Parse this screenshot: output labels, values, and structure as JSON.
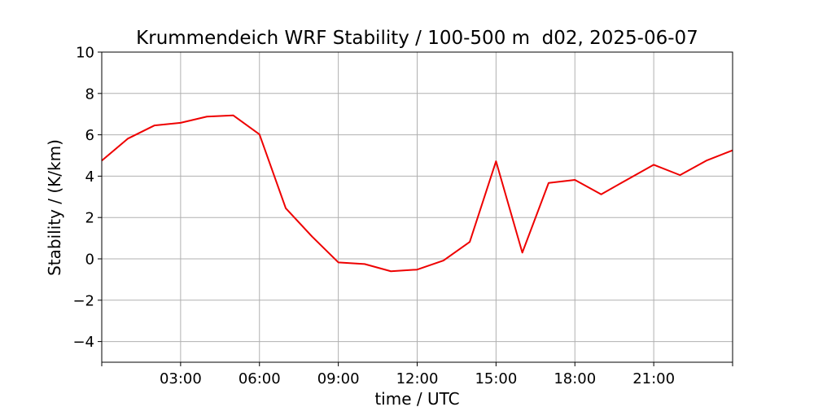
{
  "chart_data": {
    "type": "line",
    "title": "Krummendeich WRF Stability / 100-500 m  d02, 2025-06-07",
    "xlabel": "time / UTC",
    "ylabel": "Stability / (K/km)",
    "xlim": [
      0,
      24
    ],
    "ylim": [
      -5,
      10
    ],
    "x_ticks": [
      0,
      3,
      6,
      9,
      12,
      15,
      18,
      21,
      24
    ],
    "x_tick_labels": [
      "",
      "03:00",
      "06:00",
      "09:00",
      "12:00",
      "15:00",
      "18:00",
      "21:00",
      ""
    ],
    "y_ticks": [
      -4,
      -2,
      0,
      2,
      4,
      6,
      8,
      10
    ],
    "y_tick_labels": [
      "−4",
      "−2",
      "0",
      "2",
      "4",
      "6",
      "8",
      "10"
    ],
    "grid": true,
    "line_color": "#ee0000",
    "series": [
      {
        "x": [
          0,
          1,
          2,
          3,
          4,
          5,
          6,
          7,
          8,
          9,
          10,
          11,
          12,
          13,
          14,
          15,
          16,
          17,
          18,
          19,
          20,
          21,
          22,
          23,
          24
        ],
        "values": [
          4.75,
          5.82,
          6.45,
          6.58,
          6.88,
          6.94,
          6.02,
          2.45,
          1.08,
          -0.17,
          -0.25,
          -0.6,
          -0.52,
          -0.08,
          0.82,
          4.72,
          0.3,
          3.67,
          3.82,
          3.12,
          3.84,
          4.55,
          4.05,
          4.75,
          5.25
        ]
      }
    ]
  }
}
